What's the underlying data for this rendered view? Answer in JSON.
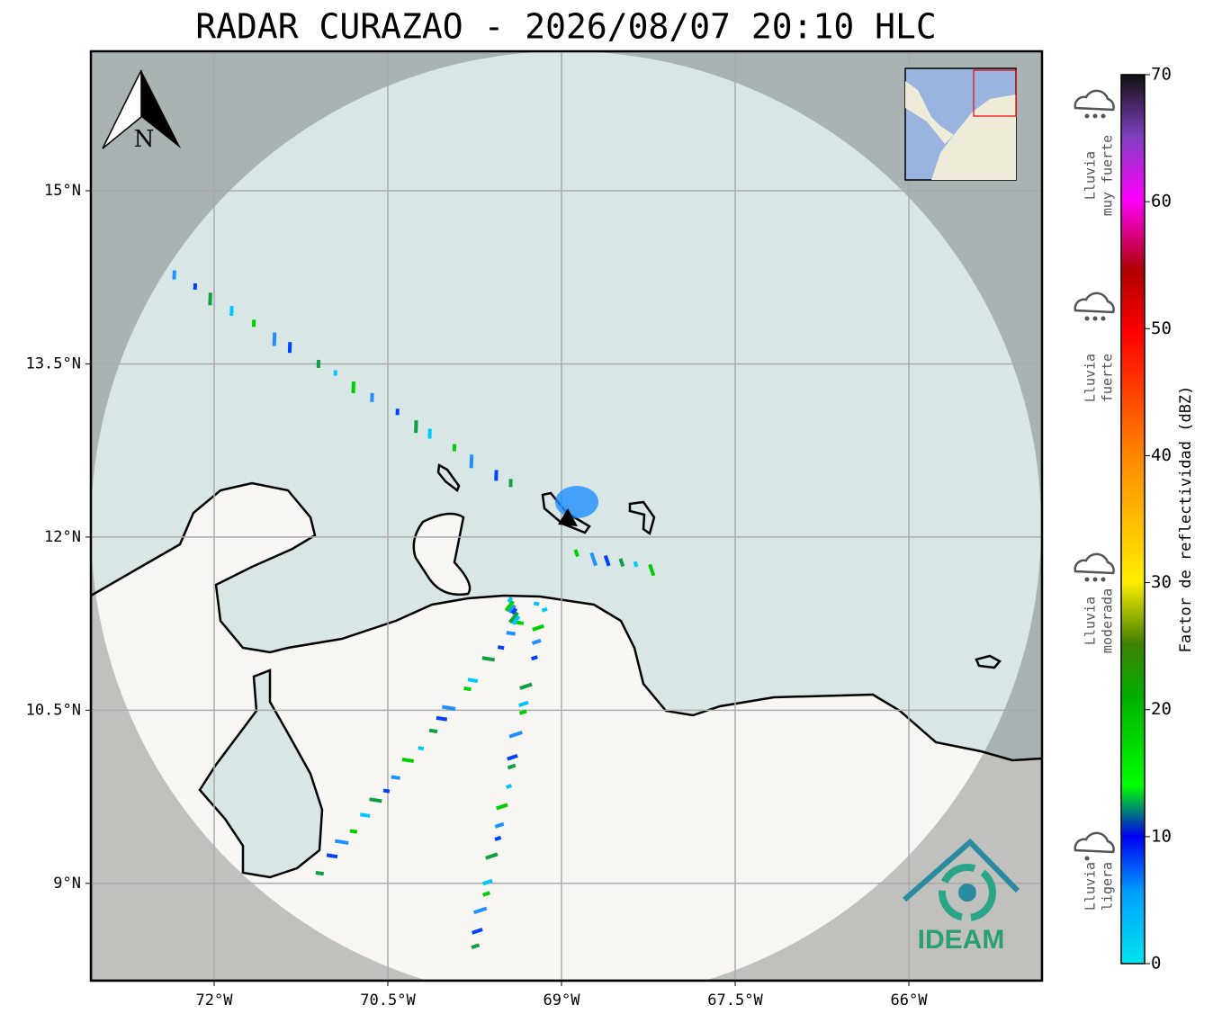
{
  "header": {
    "title": "RADAR CURAZAO - 2026/08/07 20:10 HLC"
  },
  "map": {
    "lon_ticks": [
      {
        "value": -72,
        "label": "72°W"
      },
      {
        "value": -70.5,
        "label": "70.5°W"
      },
      {
        "value": -69,
        "label": "69°W"
      },
      {
        "value": -67.5,
        "label": "67.5°W"
      },
      {
        "value": -66,
        "label": "66°W"
      }
    ],
    "lat_ticks": [
      {
        "value": 15,
        "label": "15°N"
      },
      {
        "value": 13.5,
        "label": "13.5°N"
      },
      {
        "value": 12,
        "label": "12°N"
      },
      {
        "value": 10.5,
        "label": "10.5°N"
      },
      {
        "value": 9,
        "label": "9°N"
      }
    ],
    "north_label": "N",
    "logo_text": "IDEAM"
  },
  "colorbar": {
    "label": "Factor de reflectividad (dBZ)",
    "range": [
      0,
      70
    ],
    "ticks": [
      0,
      10,
      20,
      30,
      40,
      50,
      60,
      70
    ]
  },
  "legend": {
    "items": [
      {
        "lines": [
          "Lluvia",
          "muy fuerte"
        ]
      },
      {
        "lines": [
          "Lluvia",
          "fuerte"
        ]
      },
      {
        "lines": [
          "Lluvia",
          "moderada"
        ]
      },
      {
        "lines": [
          "Lluvia",
          "ligera"
        ]
      }
    ]
  }
}
